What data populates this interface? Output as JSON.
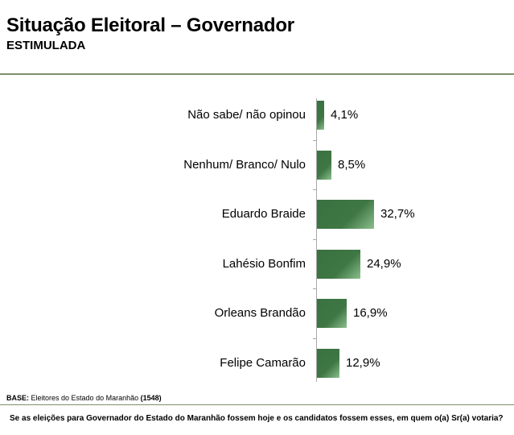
{
  "header": {
    "title": "Situação Eleitoral – Governador",
    "subtitle": "ESTIMULADA"
  },
  "chart_data": {
    "type": "bar",
    "orientation": "horizontal",
    "title": "Situação Eleitoral – Governador",
    "subtitle": "ESTIMULADA",
    "xlabel": "",
    "ylabel": "",
    "categories": [
      "Não sabe/ não opinou",
      "Nenhum/ Branco/ Nulo",
      "Eduardo Braide",
      "Lahésio Bonfim",
      "Orleans Brandão",
      "Felipe Camarão"
    ],
    "values": [
      4.1,
      8.5,
      32.7,
      24.9,
      16.9,
      12.9
    ],
    "value_labels": [
      "4,1%",
      "8,5%",
      "32,7%",
      "24,9%",
      "16,9%",
      "12,9%"
    ],
    "unit": "%",
    "grid": false,
    "legend": "none",
    "bar_color": "#3e7644"
  },
  "footer": {
    "base_label": "BASE:",
    "base_text": " Eleitores do Estado do Maranhão ",
    "base_count": "(1548)",
    "question": "Se as eleições para Governador do Estado do Maranhão fossem hoje e os candidatos fossem esses, em quem o(a) Sr(a) votaria?"
  }
}
